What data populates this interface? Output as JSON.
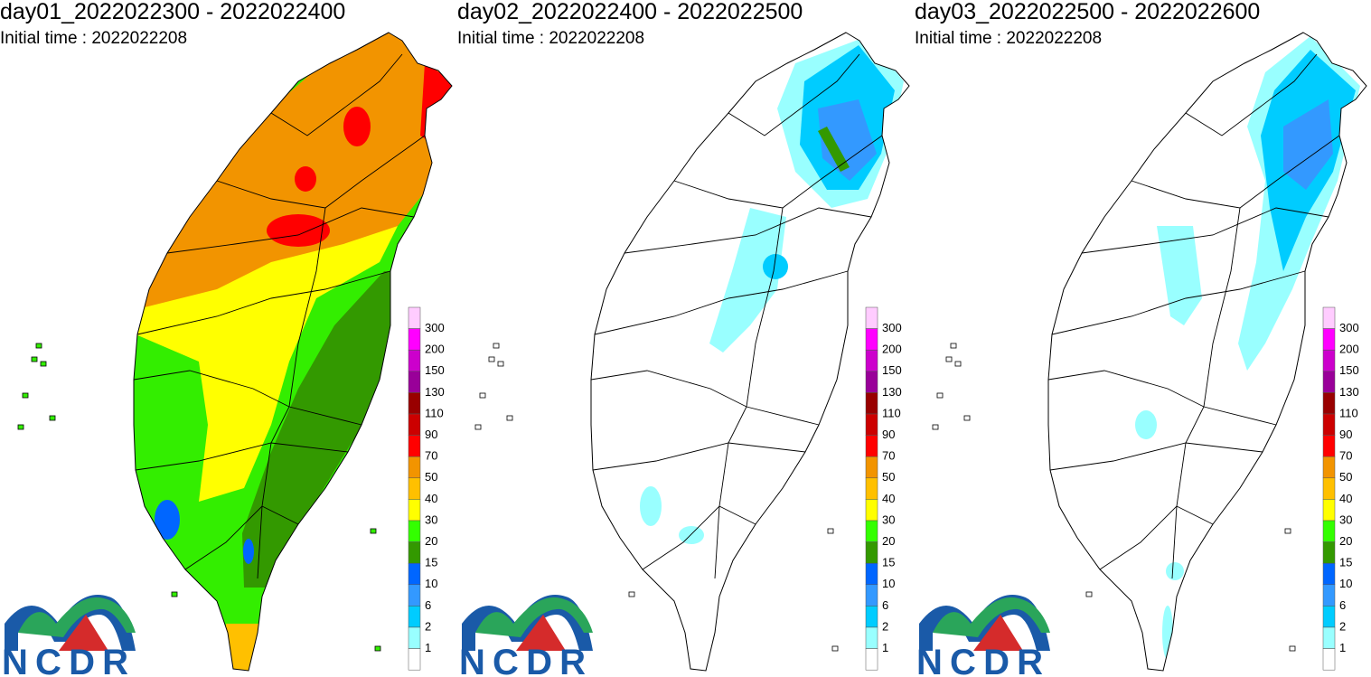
{
  "panels": [
    {
      "title": "day01_2022022300 - 2022022400",
      "initial_time": "Initial time : 2022022208"
    },
    {
      "title": "day02_2022022400 - 2022022500",
      "initial_time": "Initial time : 2022022208"
    },
    {
      "title": "day03_2022022500 - 2022022600",
      "initial_time": "Initial time : 2022022208"
    }
  ],
  "legend": {
    "levels": [
      300,
      200,
      150,
      130,
      110,
      90,
      70,
      50,
      40,
      30,
      20,
      15,
      10,
      6,
      2,
      1
    ],
    "colors": [
      "#ffccff",
      "#ff00ff",
      "#cc00cc",
      "#990099",
      "#990000",
      "#cc0000",
      "#ff0000",
      "#f29400",
      "#ffc000",
      "#ffff00",
      "#33ff00",
      "#339900",
      "#0066ff",
      "#3399ff",
      "#00ccff",
      "#99ffff",
      "#ffffff"
    ]
  },
  "logo": "NCDR"
}
